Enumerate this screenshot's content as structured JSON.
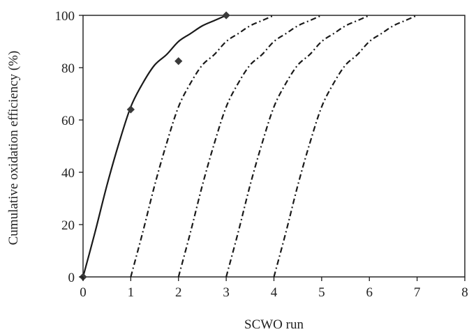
{
  "chart_data": {
    "type": "line",
    "title": "",
    "xlabel": "SCWO run",
    "ylabel": "Cumulative oxidation efficiency (%)",
    "xlim": [
      0,
      8
    ],
    "ylim": [
      0,
      100
    ],
    "grid": false,
    "legend": "none",
    "x_ticks": [
      "0",
      "1",
      "2",
      "3",
      "4",
      "5",
      "6",
      "7",
      "8"
    ],
    "y_ticks": [
      "0",
      "20",
      "40",
      "60",
      "80",
      "100"
    ],
    "series": [
      {
        "style": "solid",
        "points": [
          [
            0,
            0
          ],
          [
            0.25,
            17
          ],
          [
            0.5,
            35
          ],
          [
            0.75,
            51
          ],
          [
            1,
            65
          ],
          [
            1.25,
            74
          ],
          [
            1.5,
            81
          ],
          [
            1.75,
            85
          ],
          [
            2,
            90
          ],
          [
            2.25,
            93
          ],
          [
            2.5,
            96
          ],
          [
            2.75,
            98
          ],
          [
            3,
            100
          ]
        ]
      },
      {
        "style": "dash-dot",
        "points": [
          [
            1,
            0
          ],
          [
            1.25,
            17
          ],
          [
            1.5,
            35
          ],
          [
            1.75,
            51
          ],
          [
            2,
            65
          ],
          [
            2.25,
            74
          ],
          [
            2.5,
            81
          ],
          [
            2.75,
            85
          ],
          [
            3,
            90
          ],
          [
            3.25,
            93
          ],
          [
            3.5,
            96
          ],
          [
            3.75,
            98
          ],
          [
            4,
            100
          ]
        ]
      },
      {
        "style": "dash-dot",
        "points": [
          [
            2,
            0
          ],
          [
            2.25,
            17
          ],
          [
            2.5,
            35
          ],
          [
            2.75,
            51
          ],
          [
            3,
            65
          ],
          [
            3.25,
            74
          ],
          [
            3.5,
            81
          ],
          [
            3.75,
            85
          ],
          [
            4,
            90
          ],
          [
            4.25,
            93
          ],
          [
            4.5,
            96
          ],
          [
            4.75,
            98
          ],
          [
            5,
            100
          ]
        ]
      },
      {
        "style": "dash-dot",
        "points": [
          [
            3,
            0
          ],
          [
            3.25,
            17
          ],
          [
            3.5,
            35
          ],
          [
            3.75,
            51
          ],
          [
            4,
            65
          ],
          [
            4.25,
            74
          ],
          [
            4.5,
            81
          ],
          [
            4.75,
            85
          ],
          [
            5,
            90
          ],
          [
            5.25,
            93
          ],
          [
            5.5,
            96
          ],
          [
            5.75,
            98
          ],
          [
            6,
            100
          ]
        ]
      },
      {
        "style": "dash-dot",
        "points": [
          [
            4,
            0
          ],
          [
            4.25,
            17
          ],
          [
            4.5,
            35
          ],
          [
            4.75,
            51
          ],
          [
            5,
            65
          ],
          [
            5.25,
            74
          ],
          [
            5.5,
            81
          ],
          [
            5.75,
            85
          ],
          [
            6,
            90
          ],
          [
            6.25,
            93
          ],
          [
            6.5,
            96
          ],
          [
            6.75,
            98
          ],
          [
            7,
            100
          ]
        ]
      }
    ],
    "markers": {
      "shape": "diamond",
      "points": [
        [
          0,
          0
        ],
        [
          1,
          64
        ],
        [
          2,
          82.5
        ],
        [
          3,
          100
        ]
      ]
    },
    "colors": {
      "line": "#1a1a1a",
      "marker": "#3a3a3a",
      "axis": "#1a1a1a"
    }
  }
}
